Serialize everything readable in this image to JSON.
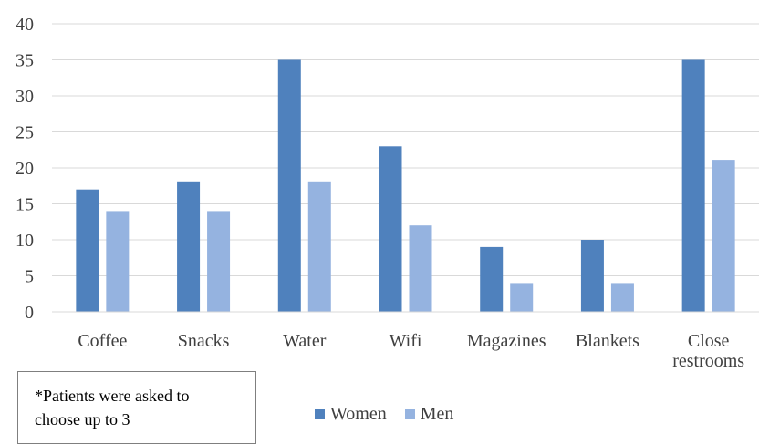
{
  "chart_data": {
    "type": "bar",
    "title": "",
    "xlabel": "",
    "ylabel": "",
    "categories": [
      "Coffee",
      "Snacks",
      "Water",
      "Wifi",
      "Magazines",
      "Blankets",
      "Close restrooms"
    ],
    "category_lines": [
      [
        "Coffee"
      ],
      [
        "Snacks"
      ],
      [
        "Water"
      ],
      [
        "Wifi"
      ],
      [
        "Magazines"
      ],
      [
        "Blankets"
      ],
      [
        "Close",
        "restrooms"
      ]
    ],
    "series": [
      {
        "name": "Women",
        "color": "#4f81bd",
        "values": [
          17,
          18,
          35,
          23,
          9,
          10,
          35
        ]
      },
      {
        "name": "Men",
        "color": "#95b3e0",
        "values": [
          14,
          14,
          18,
          12,
          4,
          4,
          21
        ]
      }
    ],
    "ylim": [
      0,
      40
    ],
    "yticks": [
      0,
      5,
      10,
      15,
      20,
      25,
      30,
      35,
      40
    ],
    "grid": true,
    "legend_position": "bottom"
  },
  "note": {
    "lines": [
      "*Patients were asked to",
      "choose up to 3"
    ]
  }
}
